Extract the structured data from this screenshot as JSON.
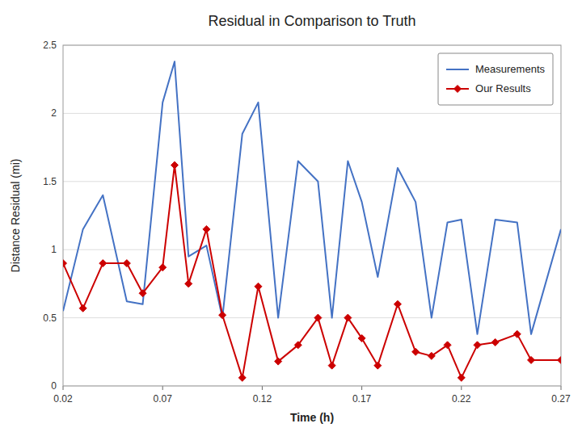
{
  "chart_data": {
    "type": "line",
    "title": "Residual in Comparison to Truth",
    "x_label": "Time (h)",
    "y_label": "Distance Residual (mi)",
    "x": [
      0.02,
      0.03,
      0.04,
      0.052,
      0.06,
      0.07,
      0.076,
      0.083,
      0.092,
      0.1,
      0.11,
      0.118,
      0.128,
      0.138,
      0.148,
      0.155,
      0.163,
      0.17,
      0.178,
      0.188,
      0.197,
      0.205,
      0.213,
      0.22,
      0.228,
      0.237,
      0.248,
      0.255,
      0.27
    ],
    "series": [
      {
        "name": "Measurements",
        "color": "#4472C4",
        "values": [
          0.55,
          1.15,
          1.4,
          0.62,
          0.6,
          2.08,
          2.38,
          0.95,
          1.03,
          0.5,
          1.85,
          2.08,
          0.5,
          1.65,
          1.5,
          0.5,
          1.65,
          1.35,
          0.8,
          1.6,
          1.35,
          0.5,
          1.2,
          1.22,
          0.38,
          1.22,
          1.2,
          0.38,
          1.15
        ]
      },
      {
        "name": "Our Results",
        "color": "#CC0000",
        "marker": "diamond",
        "values": [
          0.9,
          0.57,
          0.9,
          0.9,
          0.68,
          0.87,
          1.62,
          0.75,
          1.15,
          0.52,
          0.06,
          0.73,
          0.18,
          0.3,
          0.5,
          0.15,
          0.5,
          0.35,
          0.15,
          0.6,
          0.25,
          0.22,
          0.3,
          0.06,
          0.3,
          0.32,
          0.38,
          0.19,
          0.19
        ]
      }
    ],
    "xlim": [
      0.02,
      0.27
    ],
    "ylim": [
      0,
      2.5
    ],
    "xticks": [
      0.02,
      0.07,
      0.12,
      0.17,
      0.22,
      0.27
    ],
    "yticks": [
      0,
      0.5,
      1,
      1.5,
      2,
      2.5
    ],
    "grid": "y",
    "legend": "upper right"
  }
}
